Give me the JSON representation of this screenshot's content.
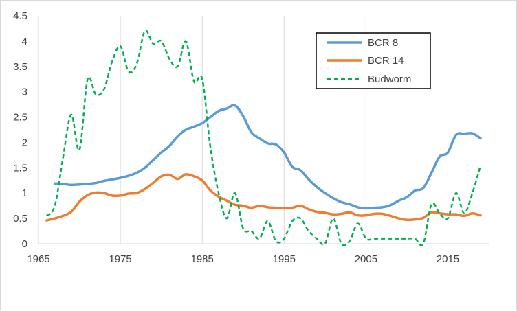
{
  "chart_data": {
    "type": "line",
    "title": "",
    "xlabel": "",
    "ylabel": "",
    "xlim": [
      1965,
      2020
    ],
    "ylim": [
      0,
      4.5
    ],
    "x_ticks": [
      1965,
      1975,
      1985,
      1995,
      2005,
      2015
    ],
    "y_ticks": [
      0,
      0.5,
      1,
      1.5,
      2,
      2.5,
      3,
      3.5,
      4,
      4.5
    ],
    "y_tick_labels": [
      "0",
      "0.5",
      "1",
      "1.5",
      "2",
      "2.5",
      "3",
      "3.5",
      "4",
      "4.5"
    ],
    "x_grid": true,
    "y_grid": false,
    "legend_position": "top-right",
    "series": [
      {
        "name": "BCR 8",
        "color": "#5B9BD5",
        "style": "solid",
        "x": [
          1967,
          1968,
          1969,
          1970,
          1971,
          1972,
          1973,
          1974,
          1975,
          1976,
          1977,
          1978,
          1979,
          1980,
          1981,
          1982,
          1983,
          1984,
          1985,
          1986,
          1987,
          1988,
          1989,
          1990,
          1991,
          1992,
          1993,
          1994,
          1995,
          1996,
          1997,
          1998,
          1999,
          2000,
          2001,
          2002,
          2003,
          2004,
          2005,
          2006,
          2007,
          2008,
          2009,
          2010,
          2011,
          2012,
          2013,
          2014,
          2015,
          2016,
          2017,
          2018,
          2019
        ],
        "y": [
          1.19,
          1.18,
          1.16,
          1.17,
          1.18,
          1.2,
          1.24,
          1.27,
          1.3,
          1.34,
          1.4,
          1.5,
          1.65,
          1.8,
          1.93,
          2.12,
          2.25,
          2.31,
          2.38,
          2.5,
          2.62,
          2.67,
          2.73,
          2.52,
          2.2,
          2.08,
          1.98,
          1.96,
          1.8,
          1.52,
          1.45,
          1.27,
          1.12,
          1.0,
          0.9,
          0.82,
          0.78,
          0.72,
          0.7,
          0.71,
          0.72,
          0.76,
          0.85,
          0.92,
          1.05,
          1.1,
          1.4,
          1.72,
          1.8,
          2.15,
          2.17,
          2.18,
          2.08
        ]
      },
      {
        "name": "BCR 14",
        "color": "#ED7D31",
        "style": "solid",
        "x": [
          1966,
          1967,
          1968,
          1969,
          1970,
          1971,
          1972,
          1973,
          1974,
          1975,
          1976,
          1977,
          1978,
          1979,
          1980,
          1981,
          1982,
          1983,
          1984,
          1985,
          1986,
          1987,
          1988,
          1989,
          1990,
          1991,
          1992,
          1993,
          1994,
          1995,
          1996,
          1997,
          1998,
          1999,
          2000,
          2001,
          2002,
          2003,
          2004,
          2005,
          2006,
          2007,
          2008,
          2009,
          2010,
          2011,
          2012,
          2013,
          2014,
          2015,
          2016,
          2017,
          2018,
          2019
        ],
        "y": [
          0.46,
          0.5,
          0.55,
          0.63,
          0.83,
          0.96,
          1.01,
          1.0,
          0.95,
          0.95,
          0.99,
          1.0,
          1.08,
          1.2,
          1.33,
          1.36,
          1.28,
          1.37,
          1.33,
          1.25,
          1.05,
          0.93,
          0.85,
          0.77,
          0.75,
          0.71,
          0.75,
          0.72,
          0.71,
          0.7,
          0.71,
          0.75,
          0.68,
          0.63,
          0.61,
          0.58,
          0.59,
          0.62,
          0.56,
          0.56,
          0.59,
          0.59,
          0.55,
          0.5,
          0.47,
          0.48,
          0.51,
          0.62,
          0.6,
          0.58,
          0.58,
          0.55,
          0.6,
          0.56
        ]
      },
      {
        "name": "Budworm",
        "color": "#00B050",
        "style": "dashed",
        "x": [
          1966,
          1967,
          1968,
          1969,
          1970,
          1971,
          1972,
          1973,
          1974,
          1975,
          1976,
          1977,
          1978,
          1979,
          1980,
          1981,
          1982,
          1983,
          1984,
          1985,
          1986,
          1987,
          1988,
          1989,
          1990,
          1991,
          1992,
          1993,
          1994,
          1995,
          1996,
          1997,
          1998,
          1999,
          2000,
          2001,
          2002,
          2003,
          2004,
          2005,
          2006,
          2007,
          2008,
          2009,
          2010,
          2011,
          2012,
          2013,
          2014,
          2015,
          2016,
          2017,
          2018,
          2019
        ],
        "y": [
          0.55,
          0.75,
          1.7,
          2.55,
          1.85,
          3.25,
          2.95,
          3.05,
          3.6,
          3.9,
          3.4,
          3.55,
          4.2,
          3.95,
          4.0,
          3.65,
          3.5,
          4.0,
          3.2,
          3.25,
          1.9,
          1.0,
          0.5,
          1.0,
          0.3,
          0.25,
          0.1,
          0.45,
          0.05,
          0.1,
          0.45,
          0.5,
          0.25,
          0.1,
          0.0,
          0.5,
          0.0,
          0.05,
          0.4,
          0.1,
          0.1,
          0.1,
          0.1,
          0.1,
          0.1,
          0.1,
          0.0,
          0.78,
          0.6,
          0.5,
          1.0,
          0.6,
          1.0,
          1.55
        ]
      }
    ]
  }
}
